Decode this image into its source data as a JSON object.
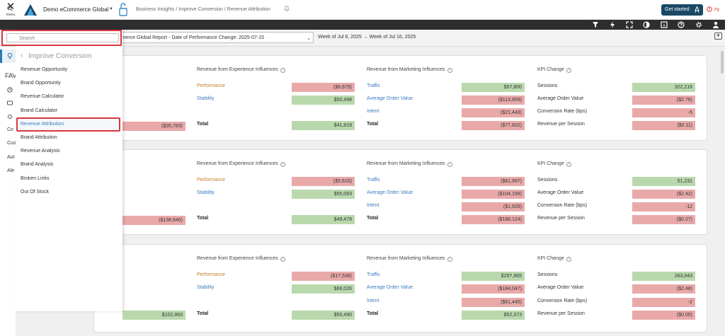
{
  "header": {
    "menu_label": "menu",
    "company": "Demo eCommerce Global",
    "breadcrumb": "Business Insights / Improve Conversion / Revenue Attribution",
    "get_started": "Get started",
    "alert_count": "79"
  },
  "filters": {
    "report": "o eCommerce Global Report - Date of Performance Change: 2025-07-15",
    "date_range": "Week of Jul 8, 2025 → Week of Jul 16, 2025"
  },
  "left_nav": {
    "fav_label": "FAV",
    "items": [
      "Co",
      "Cus",
      "Aut",
      "Ale"
    ]
  },
  "drawer": {
    "search_placeholder": "Search",
    "back_title": "Improve Conversion",
    "items": [
      "Revenue Opportunity",
      "Brand Opportunity",
      "Revenue Calculator",
      "Brand Calculator",
      "Revenue Attribution",
      "Brand Attribution",
      "Revenue Analysis",
      "Brand Analysis",
      "Broken Links",
      "Out Of Stock"
    ],
    "active_item": "Revenue Attribution"
  },
  "columns": {
    "experience": "Revenue from Experience Influences",
    "marketing": "Revenue from Marketing Influences",
    "kpi": "KPI Change"
  },
  "row_labels": {
    "performance": "Performance",
    "stability": "Stability",
    "total": "Total",
    "traffic": "Traffic",
    "aov": "Average Order Value",
    "intent": "Intent",
    "sessions": "Sessions",
    "kpi_aov": "Average Order Value",
    "conversion": "Conversion Rate (bps)",
    "rps": "Revenue per Session"
  },
  "cards": [
    {
      "left_total": "($35,783)",
      "experience": {
        "performance": "($8,679)",
        "stability": "$50,498",
        "total": "$41,819"
      },
      "marketing": {
        "traffic": "$57,800",
        "aov": "($113,959)",
        "intent": "($21,443)",
        "total": "($77,602)"
      },
      "kpi": {
        "sessions": "322,216",
        "aov": "($2.76)",
        "conversion": "-5",
        "rps": "($0.11)"
      }
    },
    {
      "left_total": "($138,646)",
      "experience": {
        "performance": "($5,615)",
        "stability": "$55,093",
        "total": "$49,478"
      },
      "marketing": {
        "traffic": "($81,997)",
        "aov": "($104,199)",
        "intent": "($1,928)",
        "total": "($188,124)"
      },
      "kpi": {
        "sessions": "51,231",
        "aov": "($2.42)",
        "conversion": "-12",
        "rps": "($0.27)"
      }
    },
    {
      "left_total": "$102,863",
      "experience": {
        "performance": "($17,536)",
        "stability": "$68,026",
        "total": "$50,490"
      },
      "marketing": {
        "traffic": "$297,865",
        "aov": "($184,047)",
        "intent": "($61,445)",
        "total": "$52,373"
      },
      "kpi": {
        "sessions": "263,943",
        "aov": "($2.48)",
        "conversion": "-2",
        "rps": "($0.05)"
      }
    }
  ],
  "colors": {
    "positive": "#b9d9ad",
    "negative": "#e9a9a9",
    "brand": "#1b4965",
    "highlight": "#d9363e"
  }
}
